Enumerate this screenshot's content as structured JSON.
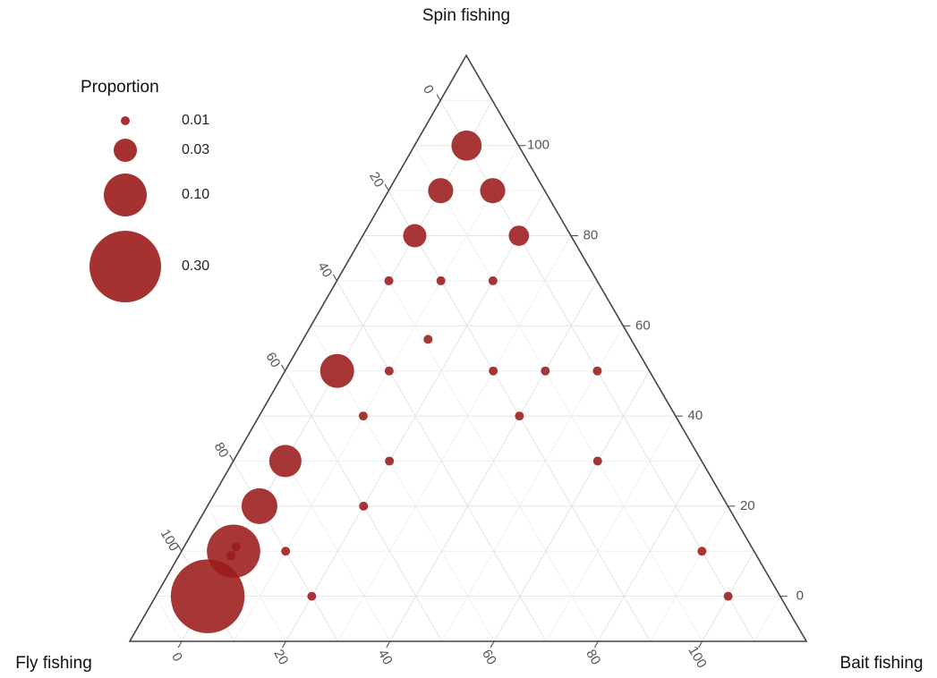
{
  "chart_data": {
    "type": "ternary",
    "axes": {
      "top": {
        "label": "Spin fishing",
        "lim": [
          -10,
          120
        ],
        "ticks": [
          0,
          20,
          40,
          60,
          80,
          100
        ]
      },
      "left": {
        "label": "Fly fishing",
        "lim": [
          -10,
          120
        ],
        "ticks": [
          0,
          20,
          40,
          60,
          80,
          100
        ]
      },
      "right": {
        "label": "Bait fishing",
        "lim": [
          -10,
          120
        ],
        "ticks": [
          0,
          20,
          40,
          60,
          80,
          100
        ]
      }
    },
    "grid": true,
    "color": "#9b1b1b",
    "legend": {
      "title": "Proportion",
      "position": "top-left",
      "values": [
        0.01,
        0.03,
        {
          "value": 0.1,
          "label": "0.10"
        },
        {
          "value": 0.3,
          "label": "0.30"
        }
      ]
    },
    "points": {
      "spin": [
        100,
        90,
        90,
        80,
        80,
        70,
        70,
        70,
        57,
        50,
        50,
        50,
        50,
        50,
        40,
        40,
        30,
        30,
        30,
        20,
        20,
        10,
        10,
        10,
        11,
        9,
        0,
        0,
        0
      ],
      "fly": [
        0,
        10,
        0,
        20,
        0,
        30,
        20,
        10,
        29,
        50,
        40,
        20,
        10,
        0,
        50,
        20,
        70,
        50,
        10,
        80,
        60,
        90,
        80,
        0,
        89,
        91,
        100,
        80,
        0
      ],
      "bait": [
        0,
        0,
        10,
        0,
        20,
        0,
        10,
        20,
        14,
        0,
        10,
        30,
        40,
        50,
        10,
        40,
        0,
        20,
        60,
        0,
        20,
        0,
        10,
        90,
        0,
        0,
        0,
        20,
        100
      ],
      "size": [
        0.05,
        0.035,
        0.035,
        0.03,
        0.025,
        0.01,
        0.01,
        0.01,
        0.01,
        0.063,
        0.01,
        0.01,
        0.01,
        0.01,
        0.01,
        0.01,
        0.057,
        0.01,
        0.01,
        0.07,
        0.01,
        0.16,
        0.01,
        0.01,
        0.01,
        0.01,
        0.32,
        0.01,
        0.01
      ]
    }
  }
}
